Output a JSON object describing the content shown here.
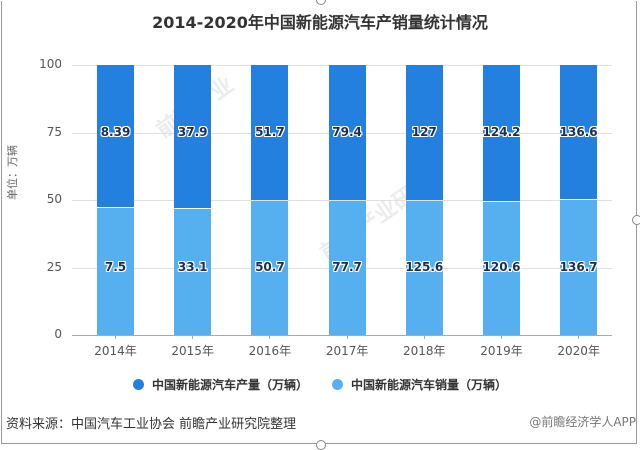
{
  "chart_data": {
    "type": "bar",
    "stacked": true,
    "normalized_percent": true,
    "title": "2014-2020年中国新能源汽车产销量统计情况",
    "xlabel": "",
    "ylabel": "单位：万辆",
    "ylim": [
      0,
      100
    ],
    "yticks": [
      "0",
      "25",
      "50",
      "75",
      "100"
    ],
    "categories": [
      "2014年",
      "2015年",
      "2016年",
      "2017年",
      "2018年",
      "2019年",
      "2020年"
    ],
    "series": [
      {
        "name": "中国新能源汽车销量（万辆）",
        "color": "#56b0f0",
        "values": [
          7.5,
          33.1,
          50.7,
          77.7,
          125.6,
          120.6,
          136.7
        ],
        "labels": [
          "7.5",
          "33.1",
          "50.7",
          "77.7",
          "125.6",
          "120.6",
          "136.7"
        ]
      },
      {
        "name": "中国新能源汽车产量（万辆）",
        "color": "#2480de",
        "values": [
          8.39,
          37.9,
          51.7,
          79.4,
          127,
          124.2,
          136.6
        ],
        "labels": [
          "8.39",
          "37.9",
          "51.7",
          "79.4",
          "127",
          "124.2",
          "136.6"
        ]
      }
    ],
    "legend_position": "bottom",
    "grid": true
  },
  "legend": {
    "production": "中国新能源汽车产量（万辆）",
    "sales": "中国新能源汽车销量（万辆）"
  },
  "footer": {
    "source": "资料来源：中国汽车工业协会 前瞻产业研究院整理",
    "credit": "@前瞻经济学人APP"
  },
  "colors": {
    "production": "#2480de",
    "sales": "#56b0f0"
  }
}
